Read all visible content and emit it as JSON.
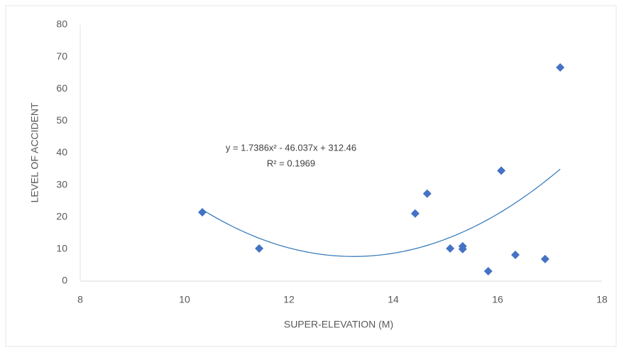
{
  "chart_data": {
    "type": "scatter",
    "x_label": "SUPER-ELEVATION (M)",
    "y_label": "LEVEL OF ACCIDENT",
    "series": [
      {
        "color": "#4472c4",
        "x": [
          10.34,
          11.43,
          14.42,
          14.65,
          15.09,
          15.33,
          15.33,
          15.82,
          16.07,
          16.34,
          16.91,
          17.2
        ],
        "y": [
          21.5,
          10.2,
          21.1,
          27.3,
          10.2,
          10.9,
          10.0,
          3.1,
          34.5,
          8.2,
          6.9,
          66.7
        ]
      }
    ],
    "trendline": {
      "coefficients": [
        1.7386,
        -46.037,
        312.46
      ],
      "color": "#2e75b6",
      "equation": "y = 1.7386x² - 46.037x + 312.46",
      "r_squared": "R² = 0.1969"
    },
    "xlim": [
      8,
      18
    ],
    "xticks": [
      8,
      10,
      12,
      14,
      16,
      18
    ],
    "ylim": [
      0,
      80
    ],
    "yticks": [
      0,
      10,
      20,
      30,
      40,
      50,
      60,
      70,
      80
    ],
    "grid": false
  }
}
